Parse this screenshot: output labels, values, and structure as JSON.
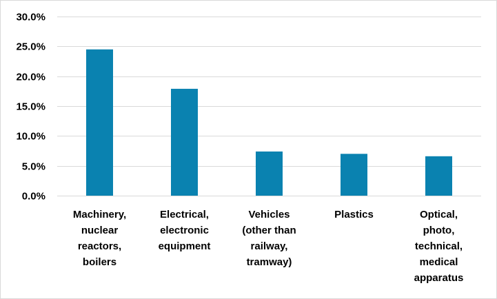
{
  "chart_data": {
    "type": "bar",
    "categories": [
      [
        "Machinery,",
        "nuclear",
        "reactors,",
        "boilers"
      ],
      [
        "Electrical,",
        "electronic",
        "equipment"
      ],
      [
        "Vehicles",
        "(other than",
        "railway,",
        "tramway)"
      ],
      [
        "Plastics"
      ],
      [
        "Optical,",
        "photo,",
        "technical,",
        "medical",
        "apparatus"
      ]
    ],
    "values": [
      24.5,
      17.9,
      7.4,
      7.0,
      6.6
    ],
    "ylim": [
      0,
      30
    ],
    "yticks": [
      "0.0%",
      "5.0%",
      "10.0%",
      "15.0%",
      "20.0%",
      "25.0%",
      "30.0%"
    ],
    "bar_color": "#0A82B0",
    "grid": true,
    "title": "",
    "xlabel": "",
    "ylabel": ""
  }
}
